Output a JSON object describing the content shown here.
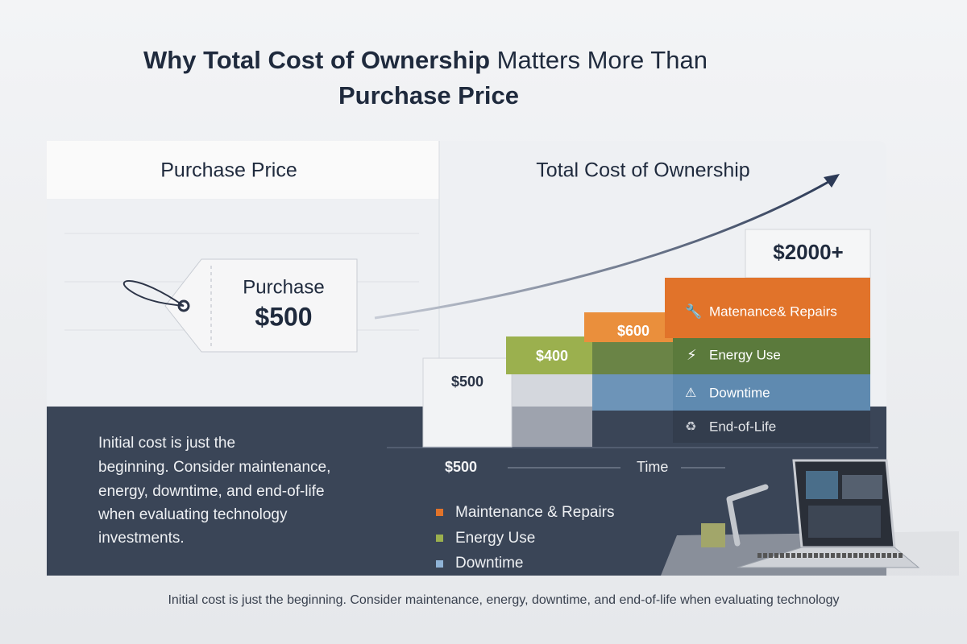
{
  "title": {
    "bold1": "Why Total Cost of Ownership",
    "regular": "Matters More Than",
    "bold2": "Purchase Price"
  },
  "left_panel": {
    "heading": "Purchase Price",
    "tag": {
      "label": "Purchase",
      "price": "$500"
    },
    "note_lines": [
      "Initial cost is just the",
      "beginning. Consider maintenance,",
      "energy, downtime, and end-of-life",
      "when evaluating technology",
      "investments."
    ]
  },
  "right_panel": {
    "heading": "Total Cost of Ownership",
    "steps": [
      "$500",
      "$400",
      "$600",
      "$2000+"
    ],
    "stack_labels": [
      "Matenance& Repairs",
      "Energy Use",
      "Downtime",
      "End-of-Life"
    ],
    "axis": {
      "start": "$500",
      "label": "Time"
    },
    "legend": [
      "Maintenance & Repairs",
      "Energy Use",
      "Downtime"
    ]
  },
  "footer": "Initial cost is just the beginning. Consider maintenance, energy, downtime, and end-of-life when evaluating technology"
}
